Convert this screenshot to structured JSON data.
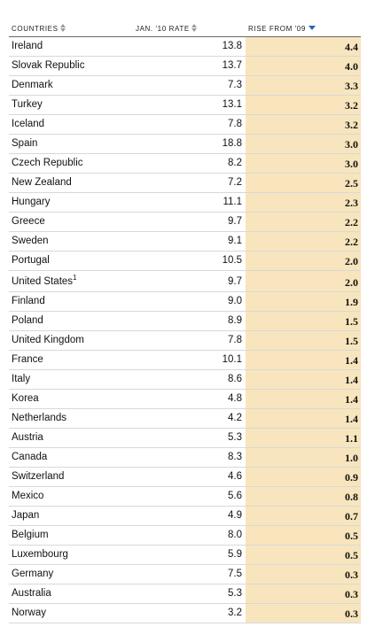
{
  "table": {
    "columns": {
      "country": "COUNTRIES",
      "rate": "JAN. '10 RATE",
      "rise": "RISE FROM '09"
    },
    "sort": {
      "column": "rise",
      "direction": "descending"
    },
    "highlight_color": "#f8e5bd",
    "sort_arrow_color": "#2a66b5",
    "rows": [
      {
        "country": "Ireland",
        "rate": "13.8",
        "rise": "4.4"
      },
      {
        "country": "Slovak Republic",
        "rate": "13.7",
        "rise": "4.0"
      },
      {
        "country": "Denmark",
        "rate": "7.3",
        "rise": "3.3"
      },
      {
        "country": "Turkey",
        "rate": "13.1",
        "rise": "3.2"
      },
      {
        "country": "Iceland",
        "rate": "7.8",
        "rise": "3.2"
      },
      {
        "country": "Spain",
        "rate": "18.8",
        "rise": "3.0"
      },
      {
        "country": "Czech Republic",
        "rate": "8.2",
        "rise": "3.0"
      },
      {
        "country": "New Zealand",
        "rate": "7.2",
        "rise": "2.5"
      },
      {
        "country": "Hungary",
        "rate": "11.1",
        "rise": "2.3"
      },
      {
        "country": "Greece",
        "rate": "9.7",
        "rise": "2.2"
      },
      {
        "country": "Sweden",
        "rate": "9.1",
        "rise": "2.2"
      },
      {
        "country": "Portugal",
        "rate": "10.5",
        "rise": "2.0"
      },
      {
        "country": "United States",
        "footnote": "1",
        "rate": "9.7",
        "rise": "2.0"
      },
      {
        "country": "Finland",
        "rate": "9.0",
        "rise": "1.9"
      },
      {
        "country": "Poland",
        "rate": "8.9",
        "rise": "1.5"
      },
      {
        "country": "United Kingdom",
        "rate": "7.8",
        "rise": "1.5"
      },
      {
        "country": "France",
        "rate": "10.1",
        "rise": "1.4"
      },
      {
        "country": "Italy",
        "rate": "8.6",
        "rise": "1.4"
      },
      {
        "country": "Korea",
        "rate": "4.8",
        "rise": "1.4"
      },
      {
        "country": "Netherlands",
        "rate": "4.2",
        "rise": "1.4"
      },
      {
        "country": "Austria",
        "rate": "5.3",
        "rise": "1.1"
      },
      {
        "country": "Canada",
        "rate": "8.3",
        "rise": "1.0"
      },
      {
        "country": "Switzerland",
        "rate": "4.6",
        "rise": "0.9"
      },
      {
        "country": "Mexico",
        "rate": "5.6",
        "rise": "0.8"
      },
      {
        "country": "Japan",
        "rate": "4.9",
        "rise": "0.7"
      },
      {
        "country": "Belgium",
        "rate": "8.0",
        "rise": "0.5"
      },
      {
        "country": "Luxembourg",
        "rate": "5.9",
        "rise": "0.5"
      },
      {
        "country": "Germany",
        "rate": "7.5",
        "rise": "0.3"
      },
      {
        "country": "Australia",
        "rate": "5.3",
        "rise": "0.3"
      },
      {
        "country": "Norway",
        "rate": "3.2",
        "rise": "0.3"
      }
    ]
  }
}
